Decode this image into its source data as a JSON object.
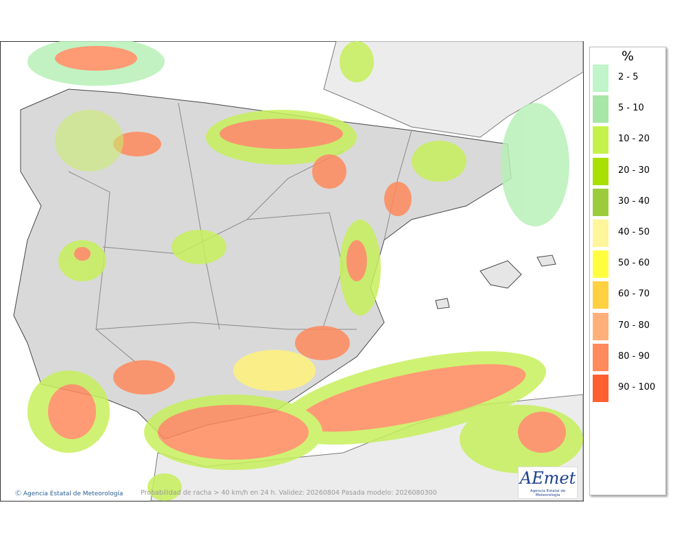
{
  "legend": {
    "title": "%",
    "entries": [
      {
        "label": "2 - 5",
        "color": "#bff5c8"
      },
      {
        "label": "5 - 10",
        "color": "#a8e6a8"
      },
      {
        "label": "10 - 20",
        "color": "#c4f24a"
      },
      {
        "label": "20 - 30",
        "color": "#a8e000"
      },
      {
        "label": "30 - 40",
        "color": "#9ccc3c"
      },
      {
        "label": "40 - 50",
        "color": "#fff59a"
      },
      {
        "label": "50 - 60",
        "color": "#ffff40"
      },
      {
        "label": "60 - 70",
        "color": "#ffd040"
      },
      {
        "label": "70 - 80",
        "color": "#ffb07a"
      },
      {
        "label": "80 - 90",
        "color": "#ff8a5c"
      },
      {
        "label": "90 - 100",
        "color": "#ff6030"
      }
    ]
  },
  "footer": {
    "credit": "Agencia Estatal de Meteorología",
    "caption": "Probabilidad de racha > 40 km/h en 24 h. Validez: 20260804 Pasada modelo: 2026080300"
  },
  "logo": {
    "mark": "AEmet",
    "subtitle": "Agencia Estatal de Meteorología"
  }
}
